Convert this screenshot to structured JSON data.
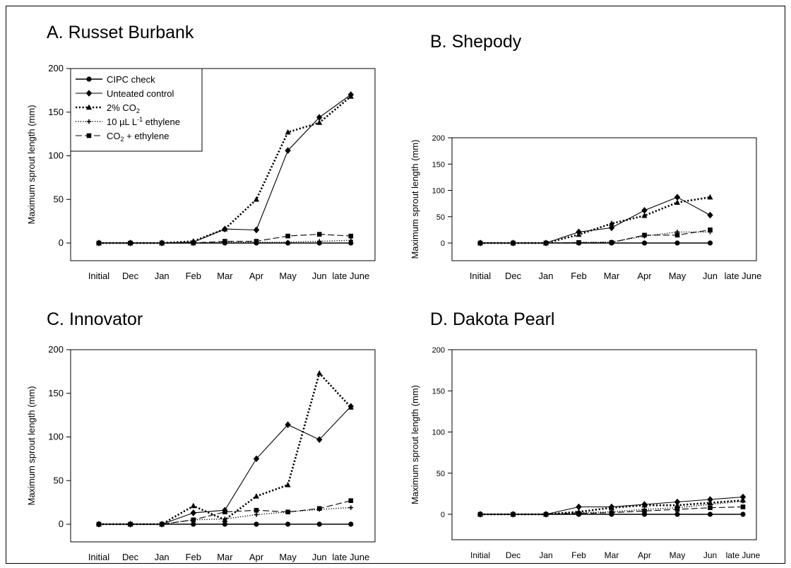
{
  "chart_data": [
    {
      "type": "line",
      "title": "A.  Russet Burbank",
      "ylabel": "Maximum sprout length (mm)",
      "xlabel": "",
      "categories": [
        "Initial",
        "Dec",
        "Jan",
        "Feb",
        "Mar",
        "Apr",
        "May",
        "Jun",
        "late June"
      ],
      "ylim": [
        -20,
        200
      ],
      "yticks": [
        0,
        50,
        100,
        150,
        200
      ],
      "legend_position": "top-left",
      "series": [
        {
          "name": "CIPC check",
          "values": [
            0,
            0,
            0,
            0,
            0,
            0,
            0,
            0,
            0
          ]
        },
        {
          "name": "Unteated control",
          "values": [
            0,
            0,
            0,
            1,
            16,
            15,
            106,
            144,
            170
          ]
        },
        {
          "name": "2% CO2",
          "values": [
            0,
            0,
            0,
            2,
            16,
            50,
            127,
            138,
            168
          ]
        },
        {
          "name": "10 µL L-1 ethylene",
          "values": [
            0,
            0,
            0,
            0,
            1,
            1,
            1,
            2,
            3
          ]
        },
        {
          "name": "CO2 + ethylene",
          "values": [
            0,
            0,
            0,
            0,
            2,
            2,
            8,
            10,
            8
          ]
        }
      ]
    },
    {
      "type": "line",
      "title": "B. Shepody",
      "ylabel": "Maximum sprout length (mm)",
      "xlabel": "",
      "categories": [
        "Initial",
        "Dec",
        "Jan",
        "Feb",
        "Mar",
        "Apr",
        "May",
        "Jun",
        "late June"
      ],
      "ylim": [
        -20,
        200
      ],
      "yticks": [
        0,
        50,
        100,
        150,
        200
      ],
      "series": [
        {
          "name": "CIPC check",
          "values": [
            0,
            0,
            0,
            0,
            0,
            0,
            0,
            0,
            null
          ]
        },
        {
          "name": "Unteated control",
          "values": [
            0,
            0,
            0,
            21,
            29,
            62,
            87,
            53,
            null
          ]
        },
        {
          "name": "2% CO2",
          "values": [
            0,
            0,
            0,
            16,
            37,
            52,
            77,
            87,
            null
          ]
        },
        {
          "name": "10 µL L-1 ethylene",
          "values": [
            0,
            0,
            0,
            1,
            2,
            13,
            21,
            21,
            null
          ]
        },
        {
          "name": "CO2 + ethylene",
          "values": [
            0,
            0,
            0,
            1,
            1,
            15,
            15,
            25,
            null
          ]
        }
      ]
    },
    {
      "type": "line",
      "title": "C. Innovator",
      "ylabel": "Maximum sprout length (mm)",
      "xlabel": "",
      "categories": [
        "Initial",
        "Dec",
        "Jan",
        "Feb",
        "Mar",
        "Apr",
        "May",
        "Jun",
        "late June"
      ],
      "ylim": [
        -20,
        200
      ],
      "yticks": [
        0,
        50,
        100,
        150,
        200
      ],
      "series": [
        {
          "name": "CIPC check",
          "values": [
            0,
            0,
            0,
            0,
            0,
            0,
            0,
            0,
            0
          ]
        },
        {
          "name": "Unteated control",
          "values": [
            0,
            0,
            0,
            13,
            16,
            75,
            114,
            97,
            135
          ]
        },
        {
          "name": "2% CO2",
          "values": [
            0,
            0,
            0,
            21,
            5,
            32,
            45,
            173,
            134
          ]
        },
        {
          "name": "10 µL L-1 ethylene",
          "values": [
            0,
            0,
            0,
            5,
            6,
            11,
            14,
            17,
            19
          ]
        },
        {
          "name": "CO2 + ethylene",
          "values": [
            0,
            0,
            0,
            5,
            14,
            16,
            14,
            18,
            27
          ]
        }
      ]
    },
    {
      "type": "line",
      "title": "D. Dakota Pearl",
      "ylabel": "Maximum sprout length (mm)",
      "xlabel": "",
      "categories": [
        "Initial",
        "Dec",
        "Jan",
        "Feb",
        "Mar",
        "Apr",
        "May",
        "Jun",
        "late June"
      ],
      "ylim": [
        -20,
        200
      ],
      "yticks": [
        0,
        50,
        100,
        150,
        200
      ],
      "series": [
        {
          "name": "CIPC check",
          "values": [
            0,
            0,
            0,
            0,
            0,
            0,
            0,
            0,
            0
          ]
        },
        {
          "name": "Unteated control",
          "values": [
            0,
            0,
            0,
            9,
            9,
            12,
            15,
            18,
            21
          ]
        },
        {
          "name": "2% CO2",
          "values": [
            0,
            0,
            0,
            3,
            8,
            11,
            11,
            14,
            17
          ]
        },
        {
          "name": "10 µL L-1 ethylene",
          "values": [
            0,
            0,
            0,
            2,
            3,
            6,
            8,
            12,
            16
          ]
        },
        {
          "name": "CO2 + ethylene",
          "values": [
            0,
            0,
            0,
            1,
            2,
            4,
            6,
            8,
            9
          ]
        }
      ]
    }
  ],
  "legend": {
    "items": [
      {
        "label": "CIPC check",
        "marker": "circle",
        "dash": "solid"
      },
      {
        "label": "Unteated control",
        "marker": "diamond",
        "dash": "solid"
      },
      {
        "label": "2% CO",
        "sub": "2",
        "marker": "triangle",
        "dash": "dotted-bold"
      },
      {
        "label": "10 µL L",
        "sup": "-1",
        "label_tail": " ethylene",
        "marker": "plus",
        "dash": "dotted"
      },
      {
        "label": "CO",
        "sub": "2",
        "label_tail": " + ethylene",
        "marker": "square",
        "dash": "dashed"
      }
    ]
  },
  "colors": {
    "ink": "#000000",
    "background": "#ffffff"
  }
}
